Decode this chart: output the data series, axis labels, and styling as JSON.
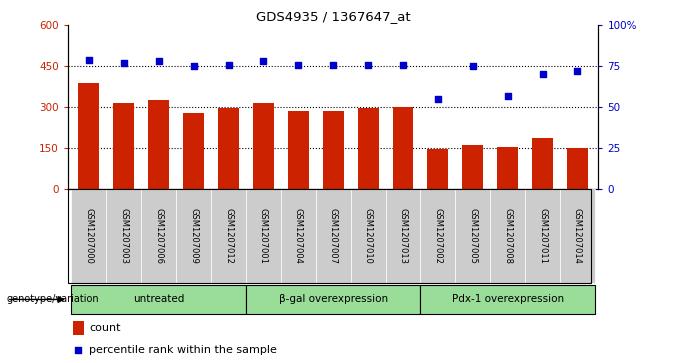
{
  "title": "GDS4935 / 1367647_at",
  "samples": [
    "GSM1207000",
    "GSM1207003",
    "GSM1207006",
    "GSM1207009",
    "GSM1207012",
    "GSM1207001",
    "GSM1207004",
    "GSM1207007",
    "GSM1207010",
    "GSM1207013",
    "GSM1207002",
    "GSM1207005",
    "GSM1207008",
    "GSM1207011",
    "GSM1207014"
  ],
  "counts": [
    390,
    315,
    325,
    280,
    295,
    315,
    285,
    285,
    295,
    300,
    145,
    160,
    155,
    185,
    148
  ],
  "percentiles": [
    79,
    77,
    78,
    75,
    76,
    78,
    76,
    76,
    76,
    76,
    55,
    75,
    57,
    70,
    72
  ],
  "groups": [
    {
      "label": "untreated",
      "start": 0,
      "end": 5
    },
    {
      "label": "β-gal overexpression",
      "start": 5,
      "end": 10
    },
    {
      "label": "Pdx-1 overexpression",
      "start": 10,
      "end": 15
    }
  ],
  "bar_color": "#cc2200",
  "dot_color": "#0000cc",
  "group_bg_color": "#99dd99",
  "sample_bg_color": "#cccccc",
  "ylim_left": [
    0,
    600
  ],
  "ylim_right": [
    0,
    100
  ],
  "yticks_left": [
    0,
    150,
    300,
    450,
    600
  ],
  "ytick_labels_left": [
    "0",
    "150",
    "300",
    "450",
    "600"
  ],
  "yticks_right": [
    0,
    25,
    50,
    75,
    100
  ],
  "ytick_labels_right": [
    "0",
    "25",
    "50",
    "75",
    "100%"
  ],
  "hgrid_values": [
    150,
    300,
    450
  ],
  "genotype_label": "genotype/variation",
  "legend_count": "count",
  "legend_percentile": "percentile rank within the sample"
}
